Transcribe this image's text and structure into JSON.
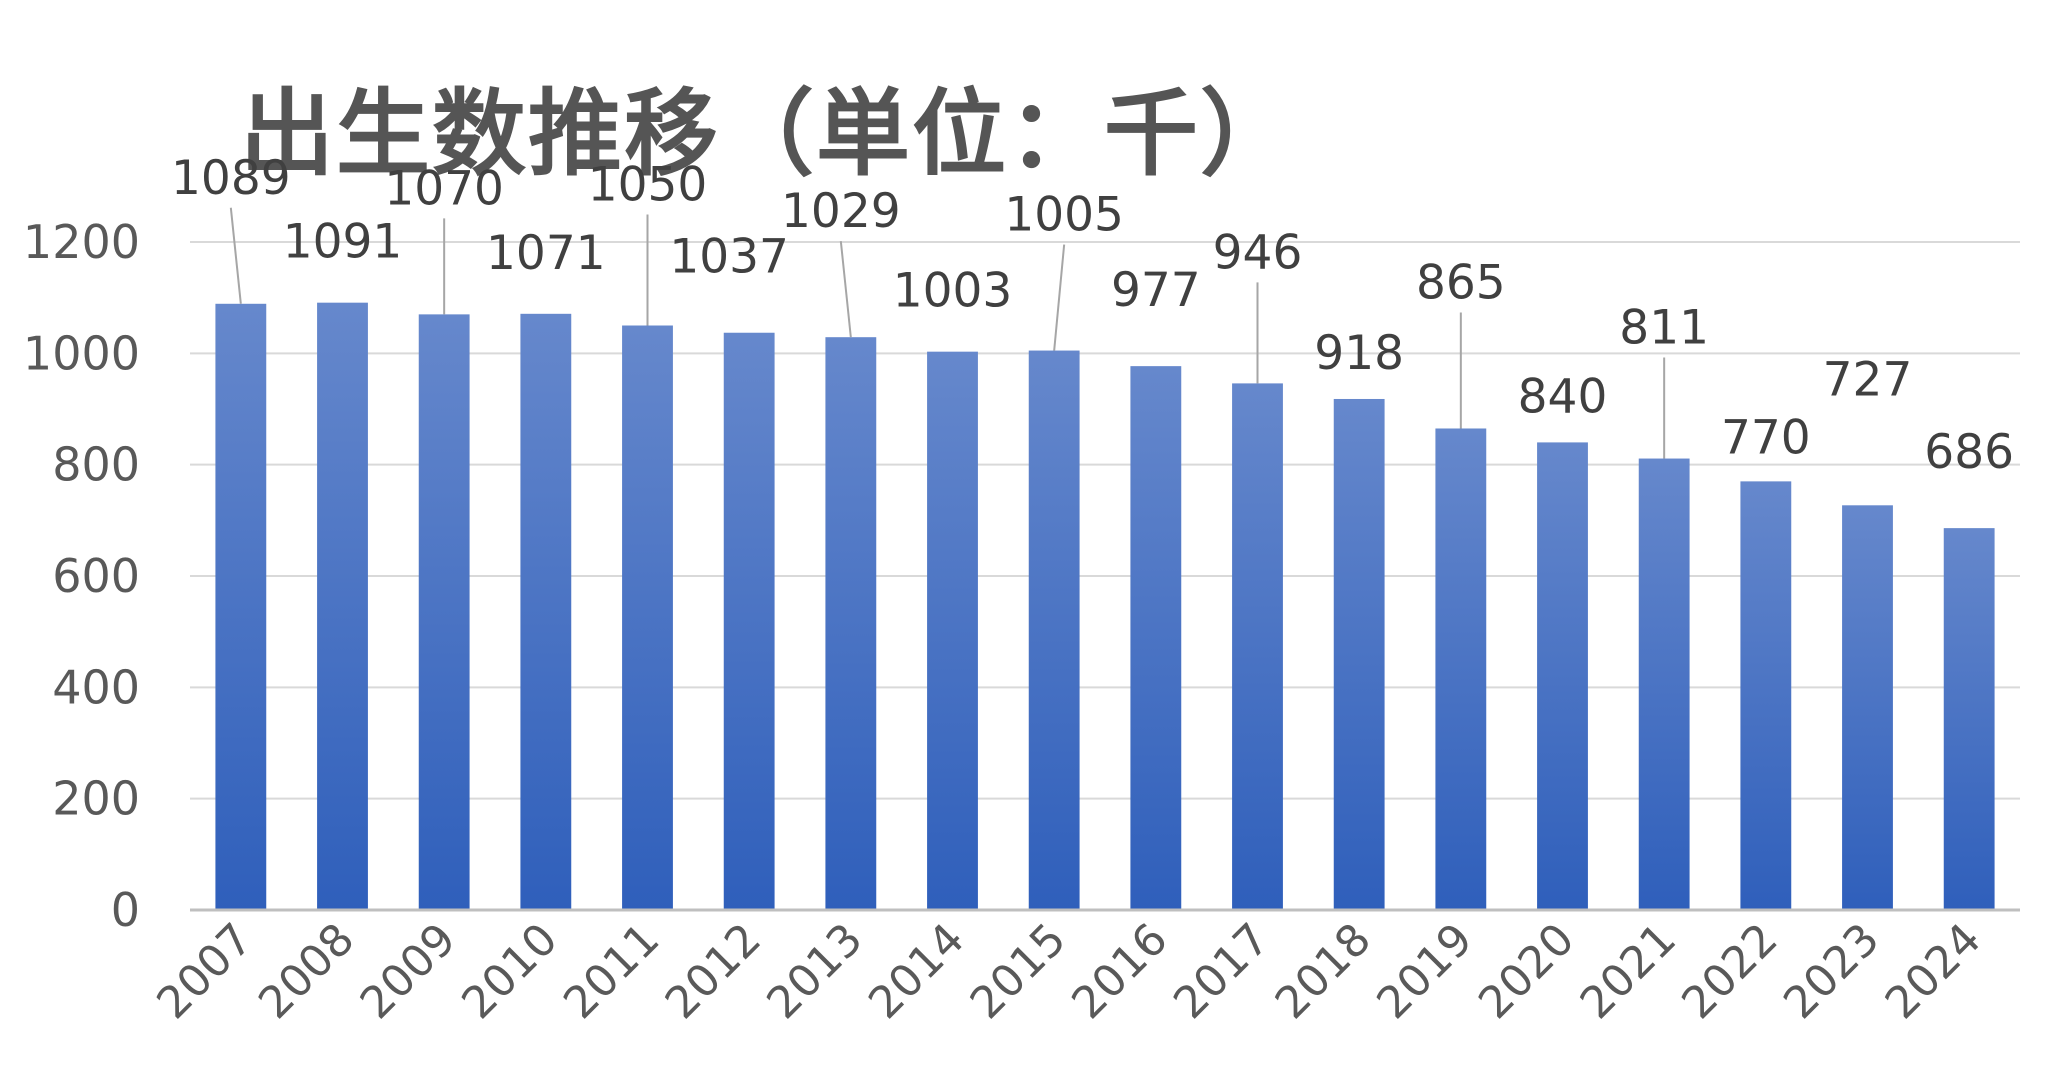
{
  "chart_data": {
    "type": "bar",
    "title": "出生数推移（単位：千）",
    "xlabel": "",
    "ylabel": "",
    "categories": [
      "2007",
      "2008",
      "2009",
      "2010",
      "2011",
      "2012",
      "2013",
      "2014",
      "2015",
      "2016",
      "2017",
      "2018",
      "2019",
      "2020",
      "2021",
      "2022",
      "2023",
      "2024"
    ],
    "values": [
      1089,
      1091,
      1070,
      1071,
      1050,
      1037,
      1029,
      1003,
      1005,
      977,
      946,
      918,
      865,
      840,
      811,
      770,
      727,
      686
    ],
    "data_labels": [
      "1089",
      "1091",
      "1070",
      "1071",
      "1050",
      "1037",
      "1029",
      "1003",
      "1005",
      "977",
      "946",
      "918",
      "865",
      "840",
      "811",
      "770",
      "727",
      "686"
    ],
    "ylim": [
      0,
      1200
    ],
    "yticks": [
      "0",
      "200",
      "400",
      "600",
      "800",
      "1000",
      "1200"
    ],
    "grid": true,
    "legend": "none",
    "colors": {
      "bar_top": "#6688cc",
      "bar_bottom": "#2f5fbb",
      "grid": "#d9d9d9",
      "axis": "#bfbfbf",
      "tick_text": "#595959",
      "label_text": "#404040",
      "leader": "#a6a6a6",
      "title_text": "#555555"
    }
  }
}
